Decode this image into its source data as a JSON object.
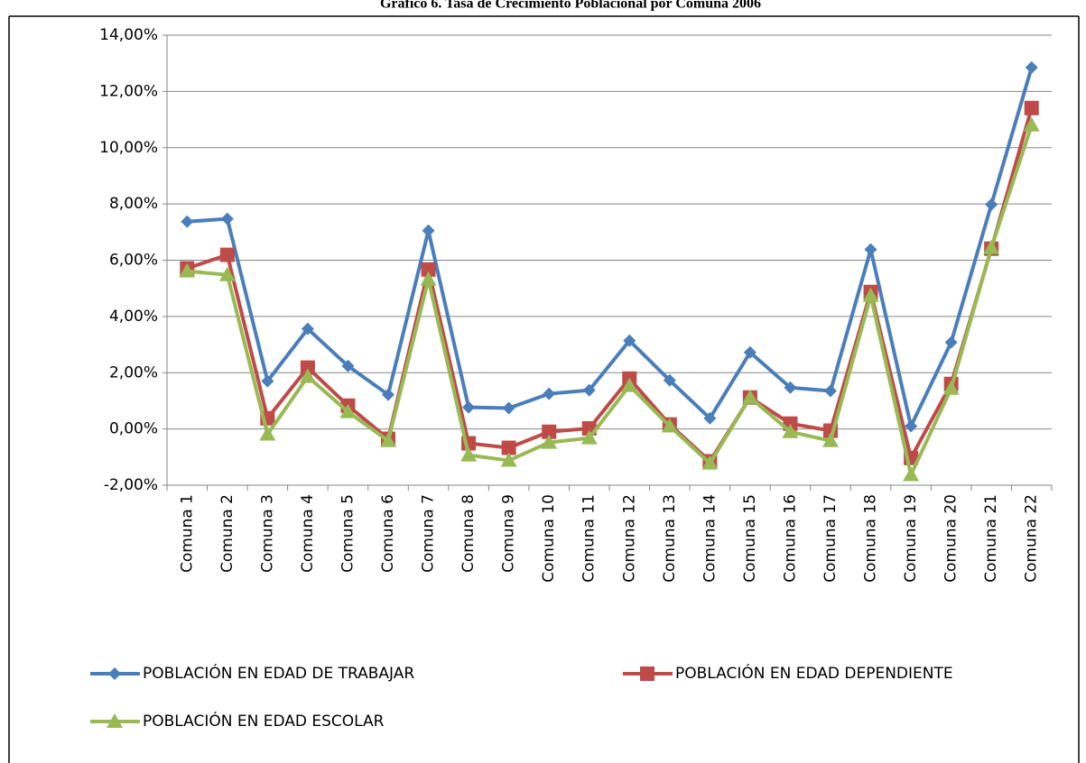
{
  "chart_data": {
    "type": "line",
    "title": "Gráfico 6. Tasa de Crecimiento Poblacional por Comuna 2006",
    "categories": [
      "Comuna 1",
      "Comuna 2",
      "Comuna 3",
      "Comuna 4",
      "Comuna 5",
      "Comuna 6",
      "Comuna 7",
      "Comuna 8",
      "Comuna 9",
      "Comuna 10",
      "Comuna 11",
      "Comuna 12",
      "Comuna 13",
      "Comuna 14",
      "Comuna 15",
      "Comuna 16",
      "Comuna 17",
      "Comuna 18",
      "Comuna 19",
      "Comuna 20",
      "Comuna 21",
      "Comuna 22"
    ],
    "series": [
      {
        "name": "POBLACIÓN EN EDAD DE TRABAJAR",
        "color": "#4a7ebb",
        "marker": "diamond",
        "values": [
          7.37,
          7.47,
          1.7,
          3.56,
          2.24,
          1.22,
          7.05,
          0.77,
          0.74,
          1.25,
          1.38,
          3.14,
          1.73,
          0.38,
          2.72,
          1.47,
          1.35,
          6.38,
          0.1,
          3.08,
          7.98,
          12.85
        ]
      },
      {
        "name": "POBLACIÓN EN EDAD DEPENDIENTE",
        "color": "#be4b48",
        "marker": "square",
        "values": [
          5.71,
          6.19,
          0.38,
          2.18,
          0.83,
          -0.35,
          5.67,
          -0.51,
          -0.67,
          -0.1,
          0.02,
          1.79,
          0.16,
          -1.15,
          1.12,
          0.19,
          -0.06,
          4.87,
          -1.03,
          1.6,
          6.41,
          11.41
        ]
      },
      {
        "name": "POBLACIÓN EN EDAD ESCOLAR",
        "color": "#98b954",
        "marker": "triangle",
        "values": [
          5.61,
          5.48,
          -0.19,
          1.86,
          0.61,
          -0.42,
          5.32,
          -0.93,
          -1.12,
          -0.48,
          -0.32,
          1.54,
          0.1,
          -1.22,
          1.12,
          -0.1,
          -0.42,
          4.74,
          -1.63,
          1.44,
          6.44,
          10.8
        ]
      }
    ],
    "ylim": [
      -2,
      14
    ],
    "yticks": [
      {
        "value": -2,
        "label": "-2,00%"
      },
      {
        "value": 0,
        "label": "0,00%"
      },
      {
        "value": 2,
        "label": "2,00%"
      },
      {
        "value": 4,
        "label": "4,00%"
      },
      {
        "value": 6,
        "label": "6,00%"
      },
      {
        "value": 8,
        "label": "8,00%"
      },
      {
        "value": 10,
        "label": "10,00%"
      },
      {
        "value": 12,
        "label": "12,00%"
      },
      {
        "value": 14,
        "label": "14,00%"
      }
    ],
    "grid": true
  }
}
